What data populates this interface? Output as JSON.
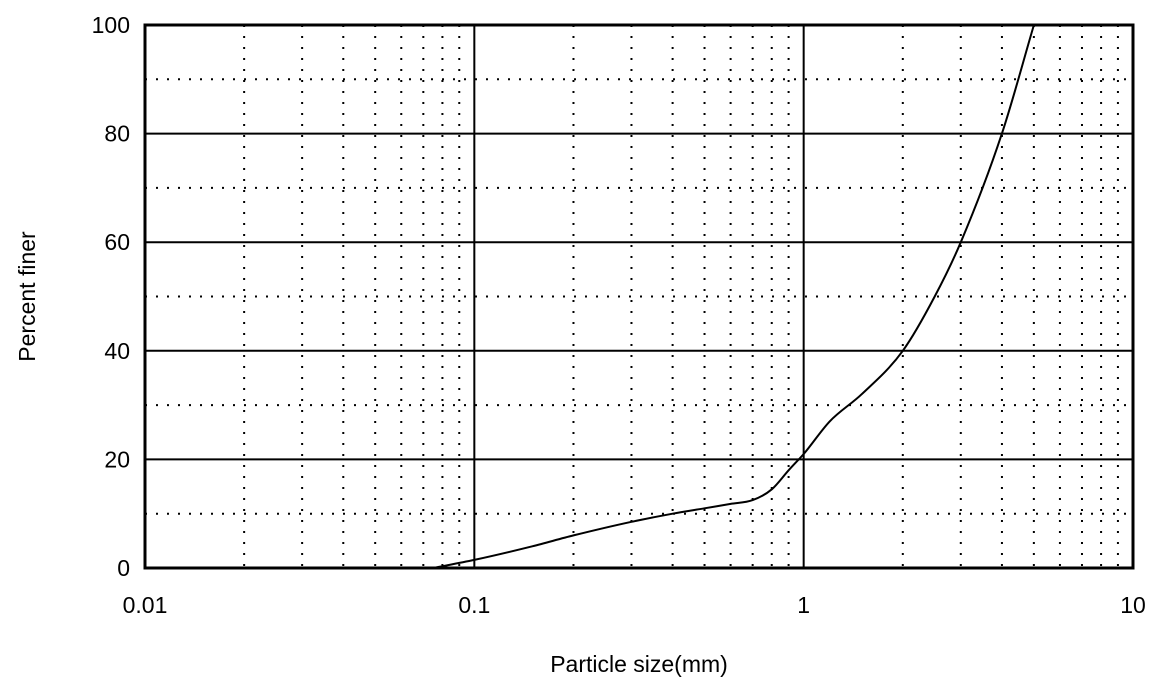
{
  "chart_data": {
    "type": "line",
    "xlabel": "Particle size(mm)",
    "ylabel": "Percent finer",
    "xscale": "log",
    "xlim": [
      0.01,
      10
    ],
    "ylim": [
      0,
      100
    ],
    "x_ticks": [
      0.01,
      0.1,
      1,
      10
    ],
    "x_tick_labels": [
      "0.01",
      "0.1",
      "1",
      "10"
    ],
    "y_ticks": [
      0,
      20,
      40,
      60,
      80,
      100
    ],
    "y_tick_labels": [
      "0",
      "20",
      "40",
      "60",
      "80",
      "100"
    ],
    "grid": true,
    "grid_minor": true,
    "legend": "none",
    "series": [
      {
        "x": [
          0.075,
          0.1,
          0.15,
          0.2,
          0.3,
          0.4,
          0.5,
          0.6,
          0.7,
          0.8,
          0.9,
          1.0,
          1.2,
          1.5,
          2.0,
          2.5,
          3.0,
          4.0,
          5.0
        ],
        "y": [
          0,
          1.5,
          4,
          6,
          8.5,
          10,
          11,
          11.8,
          12.5,
          14.5,
          18,
          21,
          27,
          32,
          40,
          50,
          60,
          80,
          100
        ]
      }
    ],
    "colors": {
      "line": "#000000",
      "grid": "#000000",
      "background": "#ffffff"
    }
  }
}
